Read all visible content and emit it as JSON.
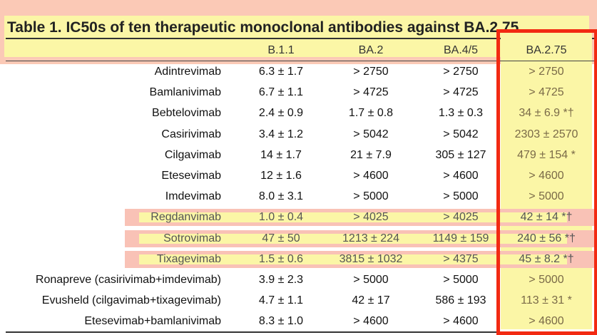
{
  "table": {
    "title": "Table 1. IC50s of ten therapeutic monoclonal antibodies against BA.2.75",
    "columns": [
      "",
      "B.1.1",
      "BA.2",
      "BA.4/5",
      "BA.2.75"
    ],
    "rows": [
      {
        "name": "Adintrevimab",
        "b11": "6.3 ± 1.7",
        "ba2": "> 2750",
        "ba45": "> 2750",
        "ba275": "> 2750"
      },
      {
        "name": "Bamlanivimab",
        "b11": "6.7 ± 1.1",
        "ba2": "> 4725",
        "ba45": "> 4725",
        "ba275": "> 4725"
      },
      {
        "name": "Bebtelovimab",
        "b11": "2.4 ± 0.9",
        "ba2": "1.7 ± 0.8",
        "ba45": "1.3 ± 0.3",
        "ba275": "34 ± 6.9 *†"
      },
      {
        "name": "Casirivimab",
        "b11": "3.4 ± 1.2",
        "ba2": "> 5042",
        "ba45": "> 5042",
        "ba275": "2303 ± 2570"
      },
      {
        "name": "Cilgavimab",
        "b11": "14 ± 1.7",
        "ba2": "21 ± 7.9",
        "ba45": "305 ± 127",
        "ba275": "479 ± 154 *"
      },
      {
        "name": "Etesevimab",
        "b11": "12 ± 1.6",
        "ba2": "> 4600",
        "ba45": "> 4600",
        "ba275": "> 4600"
      },
      {
        "name": "Imdevimab",
        "b11": "8.0 ± 3.1",
        "ba2": "> 5000",
        "ba45": "> 5000",
        "ba275": "> 5000"
      },
      {
        "name": "Regdanvimab",
        "b11": "1.0 ± 0.4",
        "ba2": "> 4025",
        "ba45": "> 4025",
        "ba275": "42 ± 14 *†"
      },
      {
        "name": "Sotrovimab",
        "b11": "47 ± 50",
        "ba2": "1213 ± 224",
        "ba45": "1149 ± 159",
        "ba275": "240 ± 56 *†"
      },
      {
        "name": "Tixagevimab",
        "b11": "1.5 ± 0.6",
        "ba2": "3815 ± 1032",
        "ba45": "> 4375",
        "ba275": "45 ± 8.2 *†"
      },
      {
        "name": "Ronapreve (casirivimab+imdevimab)",
        "b11": "3.9 ± 2.3",
        "ba2": "> 5000",
        "ba45": "> 5000",
        "ba275": "> 5000"
      },
      {
        "name": "Evusheld (cilgavimab+tixagevimab)",
        "b11": "4.7 ± 1.1",
        "ba2": "42 ± 17",
        "ba45": "586 ± 193",
        "ba275": "113 ± 31 *"
      },
      {
        "name": "Etesevimab+bamlanivimab",
        "b11": "8.3 ± 1.0",
        "ba2": "> 4600",
        "ba45": "> 4600",
        "ba275": "> 4600"
      }
    ]
  },
  "highlights": {
    "title_band_color": "#fbc9b6",
    "title_highlight_color": "#fbf6a6",
    "column_highlight_color": "#fbf6a6",
    "box_color": "#f22a12",
    "row_band_color": "#f9c2b6",
    "highlighted_rows": [
      "Regdanvimab",
      "Sotrovimab",
      "Tixagevimab"
    ],
    "boxed_column": "BA.2.75"
  }
}
